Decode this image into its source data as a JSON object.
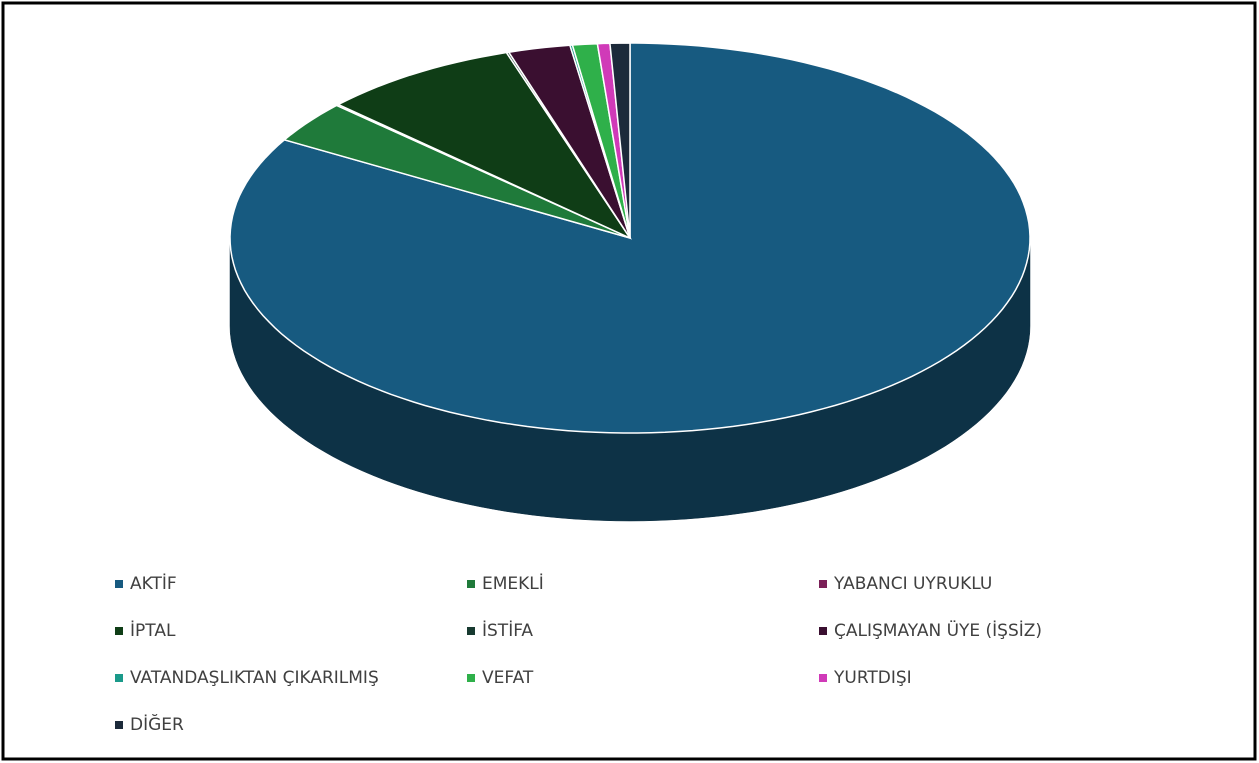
{
  "chart_data": {
    "type": "pie3d",
    "categories": [
      "AKTİF",
      "EMEKLİ",
      "YABANCI UYRUKLU",
      "İPTAL",
      "İSTİFA",
      "ÇALIŞMAYAN ÜYE (İŞSİZ)",
      "VATANDAŞLIKTAN ÇIKARILMIŞ",
      "VEFAT",
      "YURTDIŞI",
      "DİĞER"
    ],
    "values": [
      83.4,
      3.5,
      0.1,
      8,
      0.1,
      2.5,
      0.1,
      1,
      0.5,
      0.8
    ],
    "colors": [
      "#175a80",
      "#1f7a3a",
      "#7b2058",
      "#0f3d16",
      "#173a30",
      "#3a0f30",
      "#1a9a8a",
      "#2fb04a",
      "#d03ab8",
      "#1c2a3a"
    ],
    "legend": "bottom"
  }
}
